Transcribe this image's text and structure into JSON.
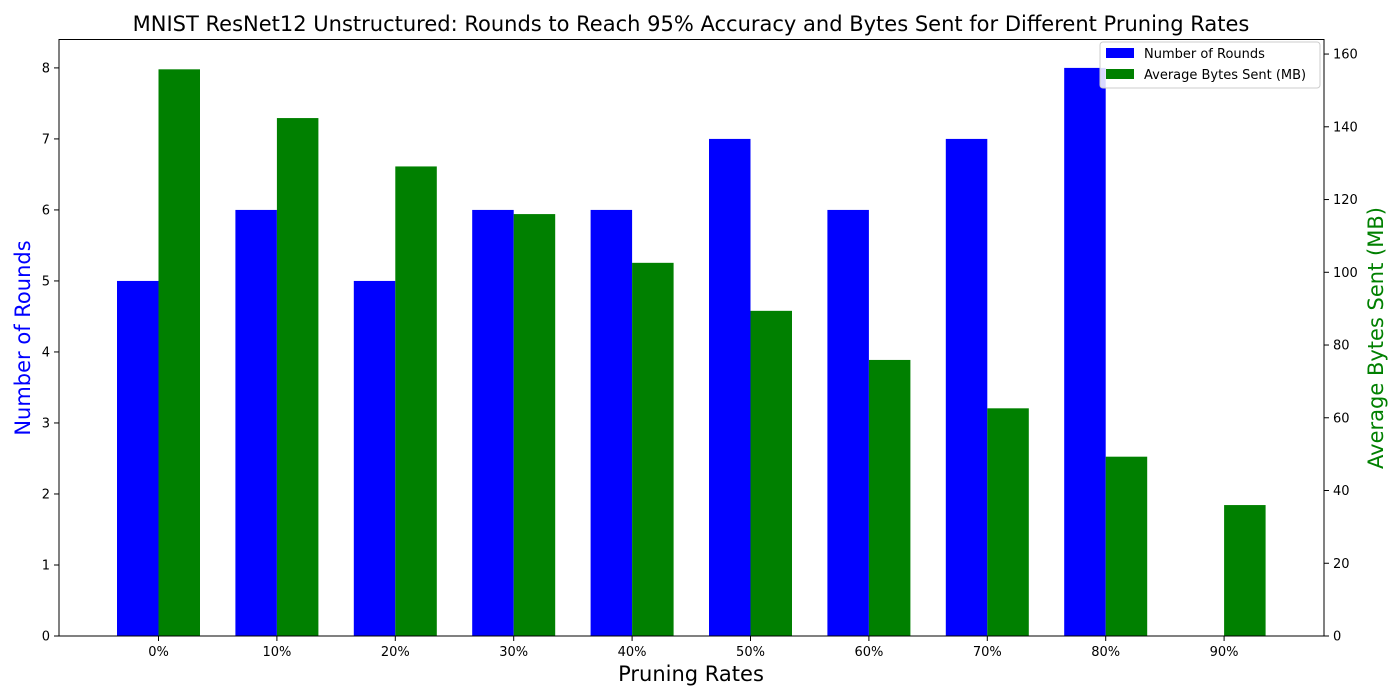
{
  "chart_data": {
    "type": "bar",
    "title": "MNIST ResNet12 Unstructured: Rounds to Reach 95% Accuracy and Bytes Sent for Different Pruning Rates",
    "xlabel": "Pruning Rates",
    "ylabel_left": "Number of Rounds",
    "ylabel_right": "Average Bytes Sent (MB)",
    "categories": [
      "0%",
      "10%",
      "20%",
      "30%",
      "40%",
      "50%",
      "60%",
      "70%",
      "80%",
      "90%"
    ],
    "series": [
      {
        "name": "Number of Rounds",
        "axis": "left",
        "color": "#0000ff",
        "values": [
          5,
          6,
          5,
          6,
          6,
          7,
          6,
          7,
          8,
          null
        ]
      },
      {
        "name": "Average Bytes Sent (MB)",
        "axis": "right",
        "color": "#008000",
        "values": [
          155.8,
          142.4,
          129.1,
          116.0,
          102.6,
          89.4,
          75.9,
          62.6,
          49.3,
          36.0
        ]
      }
    ],
    "ylim_left": [
      0,
      8.4
    ],
    "ylim_right": [
      0,
      164
    ],
    "yticks_left": [
      "0",
      "1",
      "2",
      "3",
      "4",
      "5",
      "6",
      "7",
      "8"
    ],
    "yticks_right": [
      "0",
      "20",
      "40",
      "60",
      "80",
      "100",
      "120",
      "140",
      "160"
    ],
    "left_label_color": "#0000ff",
    "right_label_color": "#008000",
    "grid": false,
    "legend_position": "top-right"
  }
}
